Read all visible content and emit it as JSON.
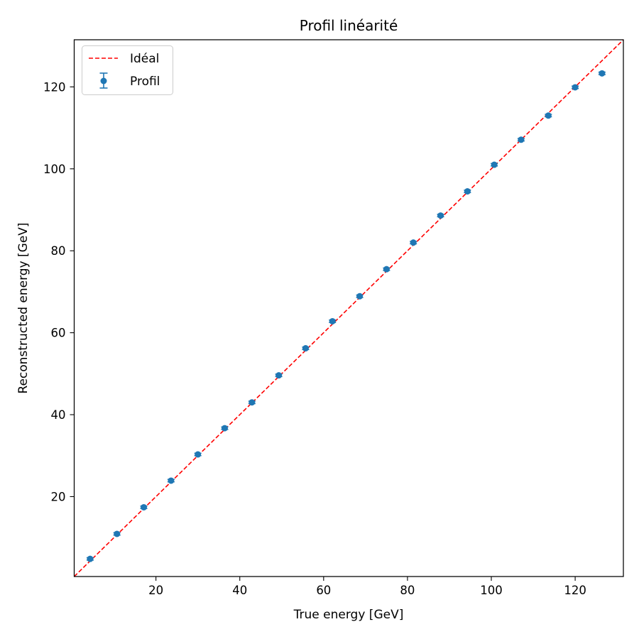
{
  "chart_data": {
    "type": "scatter",
    "title": "Profil linéarité",
    "xlabel": "True energy [GeV]",
    "ylabel": "Reconstructed energy [GeV]",
    "xlim": [
      0.5,
      131.5
    ],
    "ylim": [
      0.5,
      131.5
    ],
    "x_ticks": [
      20,
      40,
      60,
      80,
      100,
      120
    ],
    "y_ticks": [
      20,
      40,
      60,
      80,
      100,
      120
    ],
    "grid": false,
    "legend_position": "top-left",
    "legend": [
      {
        "label": "Idéal",
        "kind": "dashed-line",
        "color": "#ff0000"
      },
      {
        "label": "Profil",
        "kind": "errorbar-marker",
        "color": "#1f77b4"
      }
    ],
    "series": [
      {
        "name": "Idéal",
        "kind": "line",
        "color": "#ff0000",
        "x": [
          0.5,
          131.5
        ],
        "y": [
          0.5,
          131.5
        ]
      },
      {
        "name": "Profil",
        "kind": "errorbar",
        "color": "#1f77b4",
        "x": [
          4.3,
          10.7,
          17.1,
          23.6,
          30.0,
          36.4,
          42.9,
          49.3,
          55.7,
          62.1,
          68.6,
          75.0,
          81.4,
          87.9,
          94.3,
          100.7,
          107.1,
          113.6,
          120.0,
          126.4
        ],
        "y": [
          4.8,
          10.9,
          17.4,
          23.9,
          30.3,
          36.7,
          43.0,
          49.6,
          56.2,
          62.8,
          68.9,
          75.5,
          82.0,
          88.6,
          94.5,
          101.0,
          107.1,
          113.0,
          119.9,
          123.3
        ],
        "yerr": [
          0.3,
          0.3,
          0.3,
          0.3,
          0.3,
          0.3,
          0.3,
          0.3,
          0.3,
          0.3,
          0.3,
          0.3,
          0.3,
          0.3,
          0.3,
          0.3,
          0.3,
          0.3,
          0.3,
          0.3
        ]
      }
    ]
  }
}
